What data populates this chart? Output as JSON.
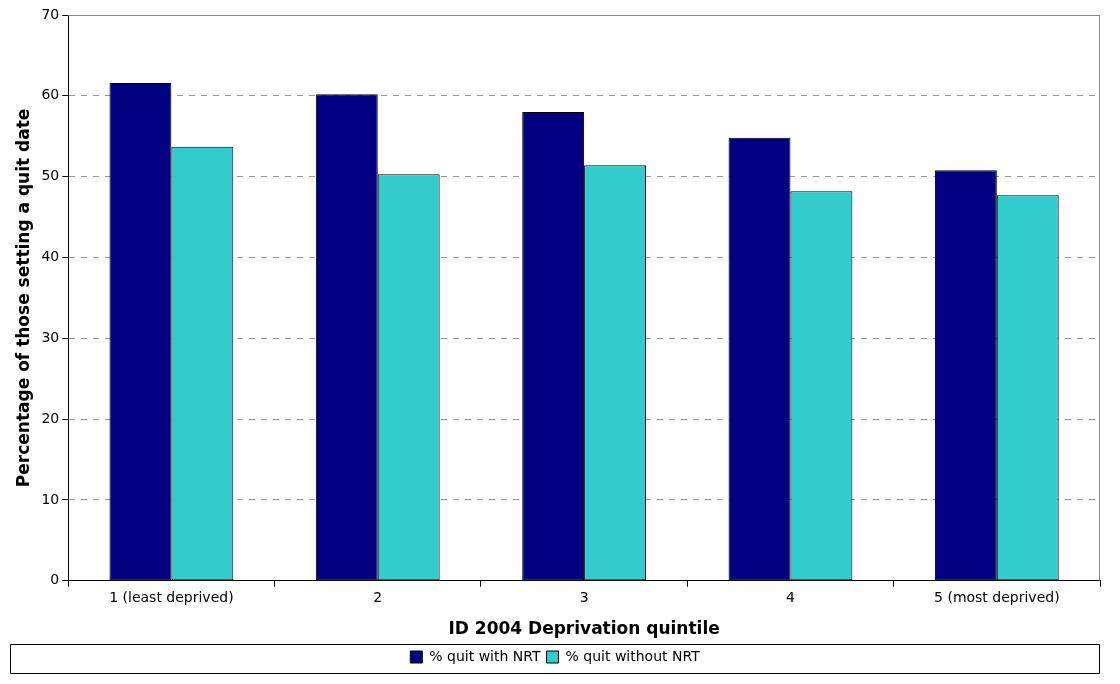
{
  "chart_data": {
    "type": "bar",
    "xlabel": "ID 2004 Deprivation quintile",
    "ylabel": "Percentage of those setting a quit date",
    "categories": [
      "1 (least deprived)",
      "2",
      "3",
      "4",
      "5 (most deprived)"
    ],
    "series": [
      {
        "name": "% quit with NRT",
        "color": "#000080",
        "values": [
          61.6,
          60.2,
          58.0,
          54.8,
          50.8
        ]
      },
      {
        "name": "% quit without NRT",
        "color": "#33cccc",
        "values": [
          53.7,
          50.3,
          51.4,
          48.2,
          47.7
        ]
      }
    ],
    "ylim": [
      0,
      70
    ],
    "yticks": [
      0,
      10,
      20,
      30,
      40,
      50,
      60,
      70
    ],
    "grid": "y",
    "legend": "bottom"
  }
}
